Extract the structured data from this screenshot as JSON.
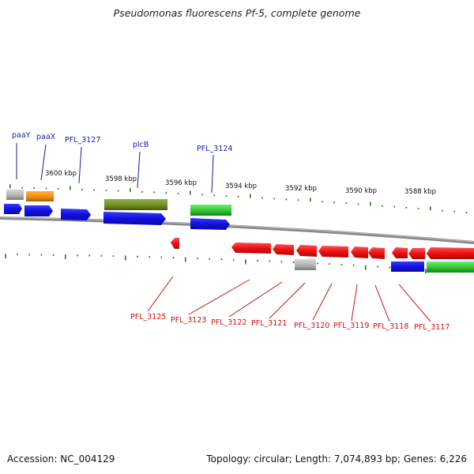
{
  "title": "Pseudomonas fluorescens Pf-5, complete genome",
  "footer": {
    "accession": "Accession: NC_004129",
    "topology": "Topology: circular; Length: 7,074,893 bp; Genes: 6,226"
  },
  "colors": {
    "forward_cds": "#1010dd",
    "reverse_cds": "#ee1111",
    "gene_grey": "#b0b0b0",
    "gene_orange": "#f08a10",
    "gene_olive": "#6f8a22",
    "gene_green": "#2fbf2f",
    "tick": "#2a7a1a",
    "backbone": "#888888",
    "label_top": "#1a1aa6",
    "label_bottom": "#cc1111"
  },
  "scale_labels": [
    "3600 kbp",
    "3598 kbp",
    "3596 kbp",
    "3594 kbp",
    "3592 kbp",
    "3590 kbp",
    "3588 kbp"
  ],
  "top_labels": [
    "paaY",
    "paaX",
    "PFL_3127",
    "plcB",
    "PFL_3124"
  ],
  "bottom_labels": [
    "PFL_3125",
    "PFL_3123",
    "PFL_3122",
    "PFL_3121",
    "PFL_3120",
    "PFL_3119",
    "PFL_3118",
    "PFL_3117"
  ]
}
